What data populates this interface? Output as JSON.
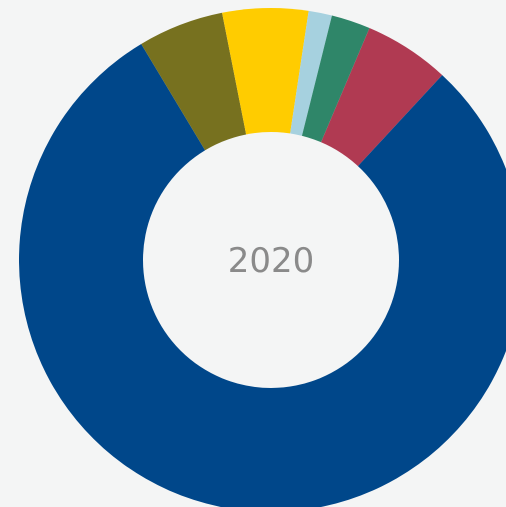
{
  "chart_data": {
    "type": "pie",
    "center_label": "2020",
    "slices": [
      {
        "value": 5.5,
        "color": "#b03a52"
      },
      {
        "value": 79.5,
        "color": "#00478a"
      },
      {
        "value": 5.5,
        "color": "#77711f"
      },
      {
        "value": 5.5,
        "color": "#ffcc00"
      },
      {
        "value": 1.5,
        "color": "#a6d1df"
      },
      {
        "value": 2.5,
        "color": "#2f8669"
      }
    ],
    "start_angle_deg": 23
  }
}
